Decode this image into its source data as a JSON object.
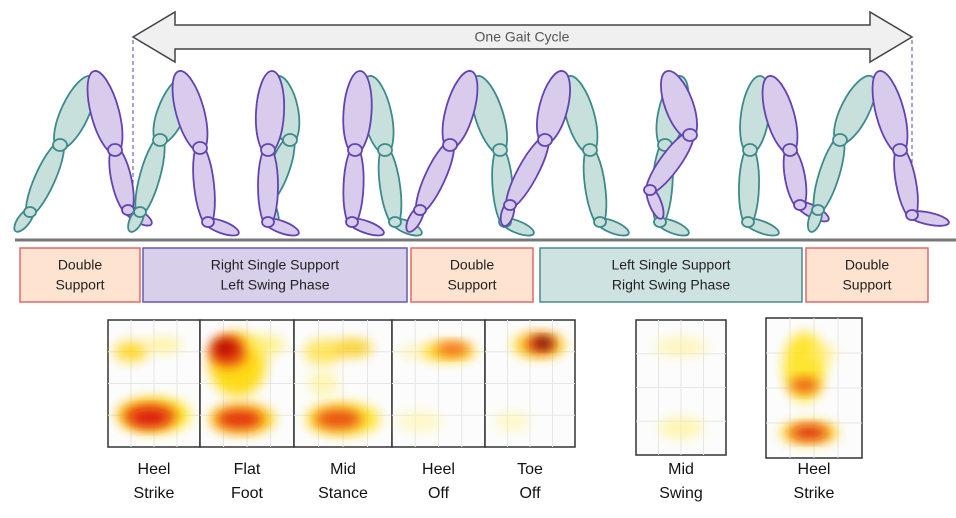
{
  "arrow_label": "One Gait Cycle",
  "phases": [
    [
      "Double",
      "Support"
    ],
    [
      "Right Single Support",
      "Left Swing Phase"
    ],
    [
      "Double",
      "Support"
    ],
    [
      "Left Single Support",
      "Right Swing Phase"
    ],
    [
      "Double",
      "Support"
    ]
  ],
  "heatmaps": [
    [
      "Heel",
      "Strike"
    ],
    [
      "Flat",
      "Foot"
    ],
    [
      "Mid",
      "Stance"
    ],
    [
      "Heel",
      "Off"
    ],
    [
      "Toe",
      "Off"
    ],
    [
      "Mid",
      "Swing"
    ],
    [
      "Heel",
      "Strike"
    ]
  ]
}
